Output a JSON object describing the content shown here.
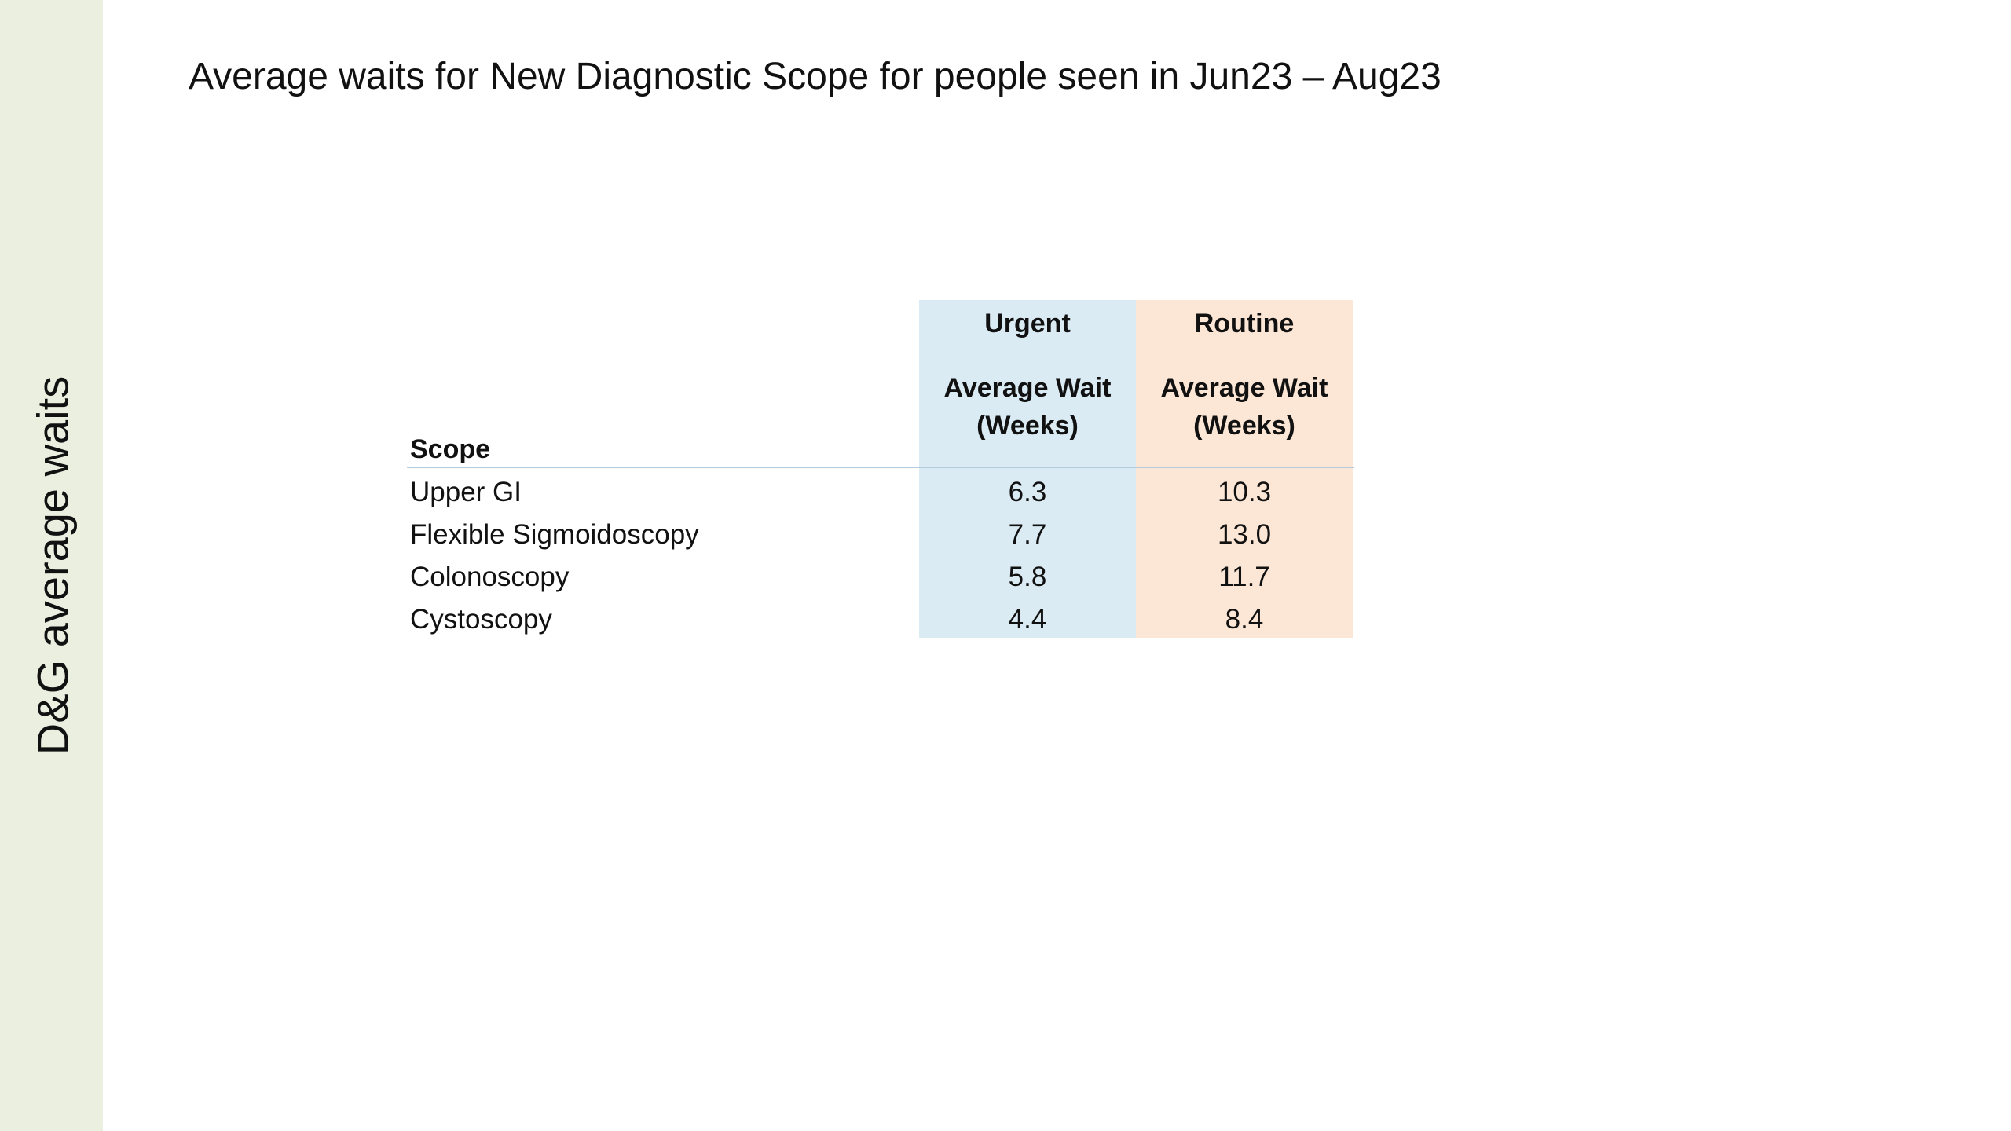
{
  "side_title": "D&G average waits",
  "title": "Average waits for New Diagnostic Scope for people seen in Jun23 – Aug23",
  "table": {
    "scope_header": "Scope",
    "urgent_header": "Urgent",
    "routine_header": "Routine",
    "urgent_subheader": "Average Wait\n(Weeks)",
    "routine_subheader": "Average Wait\n(Weeks)",
    "rows": [
      {
        "scope": "Upper GI",
        "urgent": "6.3",
        "routine": "10.3"
      },
      {
        "scope": "Flexible Sigmoidoscopy",
        "urgent": "7.7",
        "routine": "13.0"
      },
      {
        "scope": "Colonoscopy",
        "urgent": "5.8",
        "routine": "11.7"
      },
      {
        "scope": "Cystoscopy",
        "urgent": "4.4",
        "routine": "8.4"
      }
    ]
  },
  "colors": {
    "side_band": "#ebefe0",
    "urgent_column": "#dbebf4",
    "routine_column": "#fce6d5",
    "header_rule": "#b3cbe1"
  }
}
